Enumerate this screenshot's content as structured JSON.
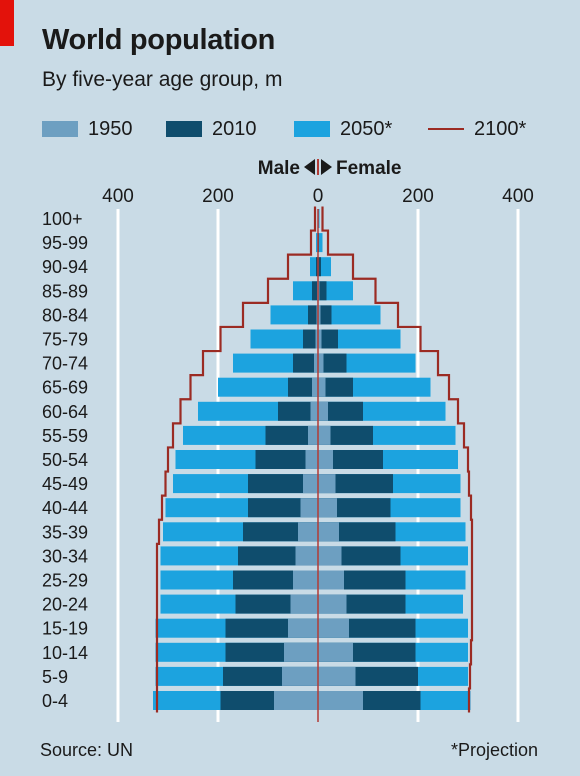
{
  "title": "World population",
  "subtitle": "By five-year age group, m",
  "legend": {
    "s1950": "1950",
    "s2010": "2010",
    "s2050": "2050*",
    "s2100": "2100*"
  },
  "colors": {
    "s1950": "#6d9fc1",
    "s2010": "#0f4d6d",
    "s2050": "#1ca3df",
    "s2100": "#9b2b23",
    "gridline": "#ffffff",
    "center_line": "#b23b35"
  },
  "source": "Source: UN",
  "note": "*Projection",
  "chart_data": {
    "type": "bar",
    "orientation": "horizontal",
    "layout": "population-pyramid",
    "male_label": "Male",
    "female_label": "Female",
    "x_ticks": [
      "400",
      "200",
      "0",
      "200",
      "400"
    ],
    "xlim": [
      -400,
      400
    ],
    "categories": [
      "100+",
      "95-99",
      "90-94",
      "85-89",
      "80-84",
      "75-79",
      "70-74",
      "65-69",
      "60-64",
      "55-59",
      "50-54",
      "45-49",
      "40-44",
      "35-39",
      "30-34",
      "25-29",
      "20-24",
      "15-19",
      "10-14",
      "5-9",
      "0-4"
    ],
    "series": [
      {
        "name": "1950",
        "male": [
          0,
          0,
          1,
          2,
          3,
          5,
          8,
          12,
          15,
          20,
          25,
          30,
          35,
          40,
          45,
          50,
          55,
          60,
          68,
          72,
          88
        ],
        "female": [
          0,
          0,
          1,
          3,
          5,
          7,
          11,
          15,
          20,
          25,
          30,
          35,
          38,
          42,
          47,
          52,
          57,
          62,
          70,
          75,
          90
        ]
      },
      {
        "name": "2010",
        "male": [
          0,
          1,
          4,
          12,
          20,
          30,
          50,
          60,
          80,
          105,
          125,
          140,
          140,
          150,
          160,
          170,
          165,
          185,
          185,
          190,
          195
        ],
        "female": [
          0,
          2,
          6,
          17,
          27,
          40,
          57,
          70,
          90,
          110,
          130,
          150,
          145,
          155,
          165,
          175,
          175,
          195,
          195,
          200,
          205
        ]
      },
      {
        "name": "2050*",
        "male": [
          1,
          4,
          16,
          50,
          95,
          135,
          170,
          200,
          240,
          270,
          285,
          290,
          305,
          310,
          315,
          315,
          315,
          325,
          325,
          325,
          330
        ],
        "female": [
          3,
          9,
          26,
          70,
          125,
          165,
          195,
          225,
          255,
          275,
          280,
          285,
          285,
          295,
          300,
          295,
          290,
          300,
          300,
          300,
          305
        ]
      },
      {
        "name": "2100*",
        "male": [
          6,
          14,
          60,
          100,
          150,
          195,
          230,
          255,
          275,
          290,
          300,
          305,
          312,
          318,
          322,
          322,
          322,
          322,
          322,
          322,
          322
        ],
        "female": [
          9,
          20,
          70,
          115,
          160,
          205,
          240,
          262,
          280,
          292,
          300,
          302,
          306,
          308,
          308,
          308,
          308,
          308,
          306,
          304,
          302
        ]
      }
    ]
  }
}
